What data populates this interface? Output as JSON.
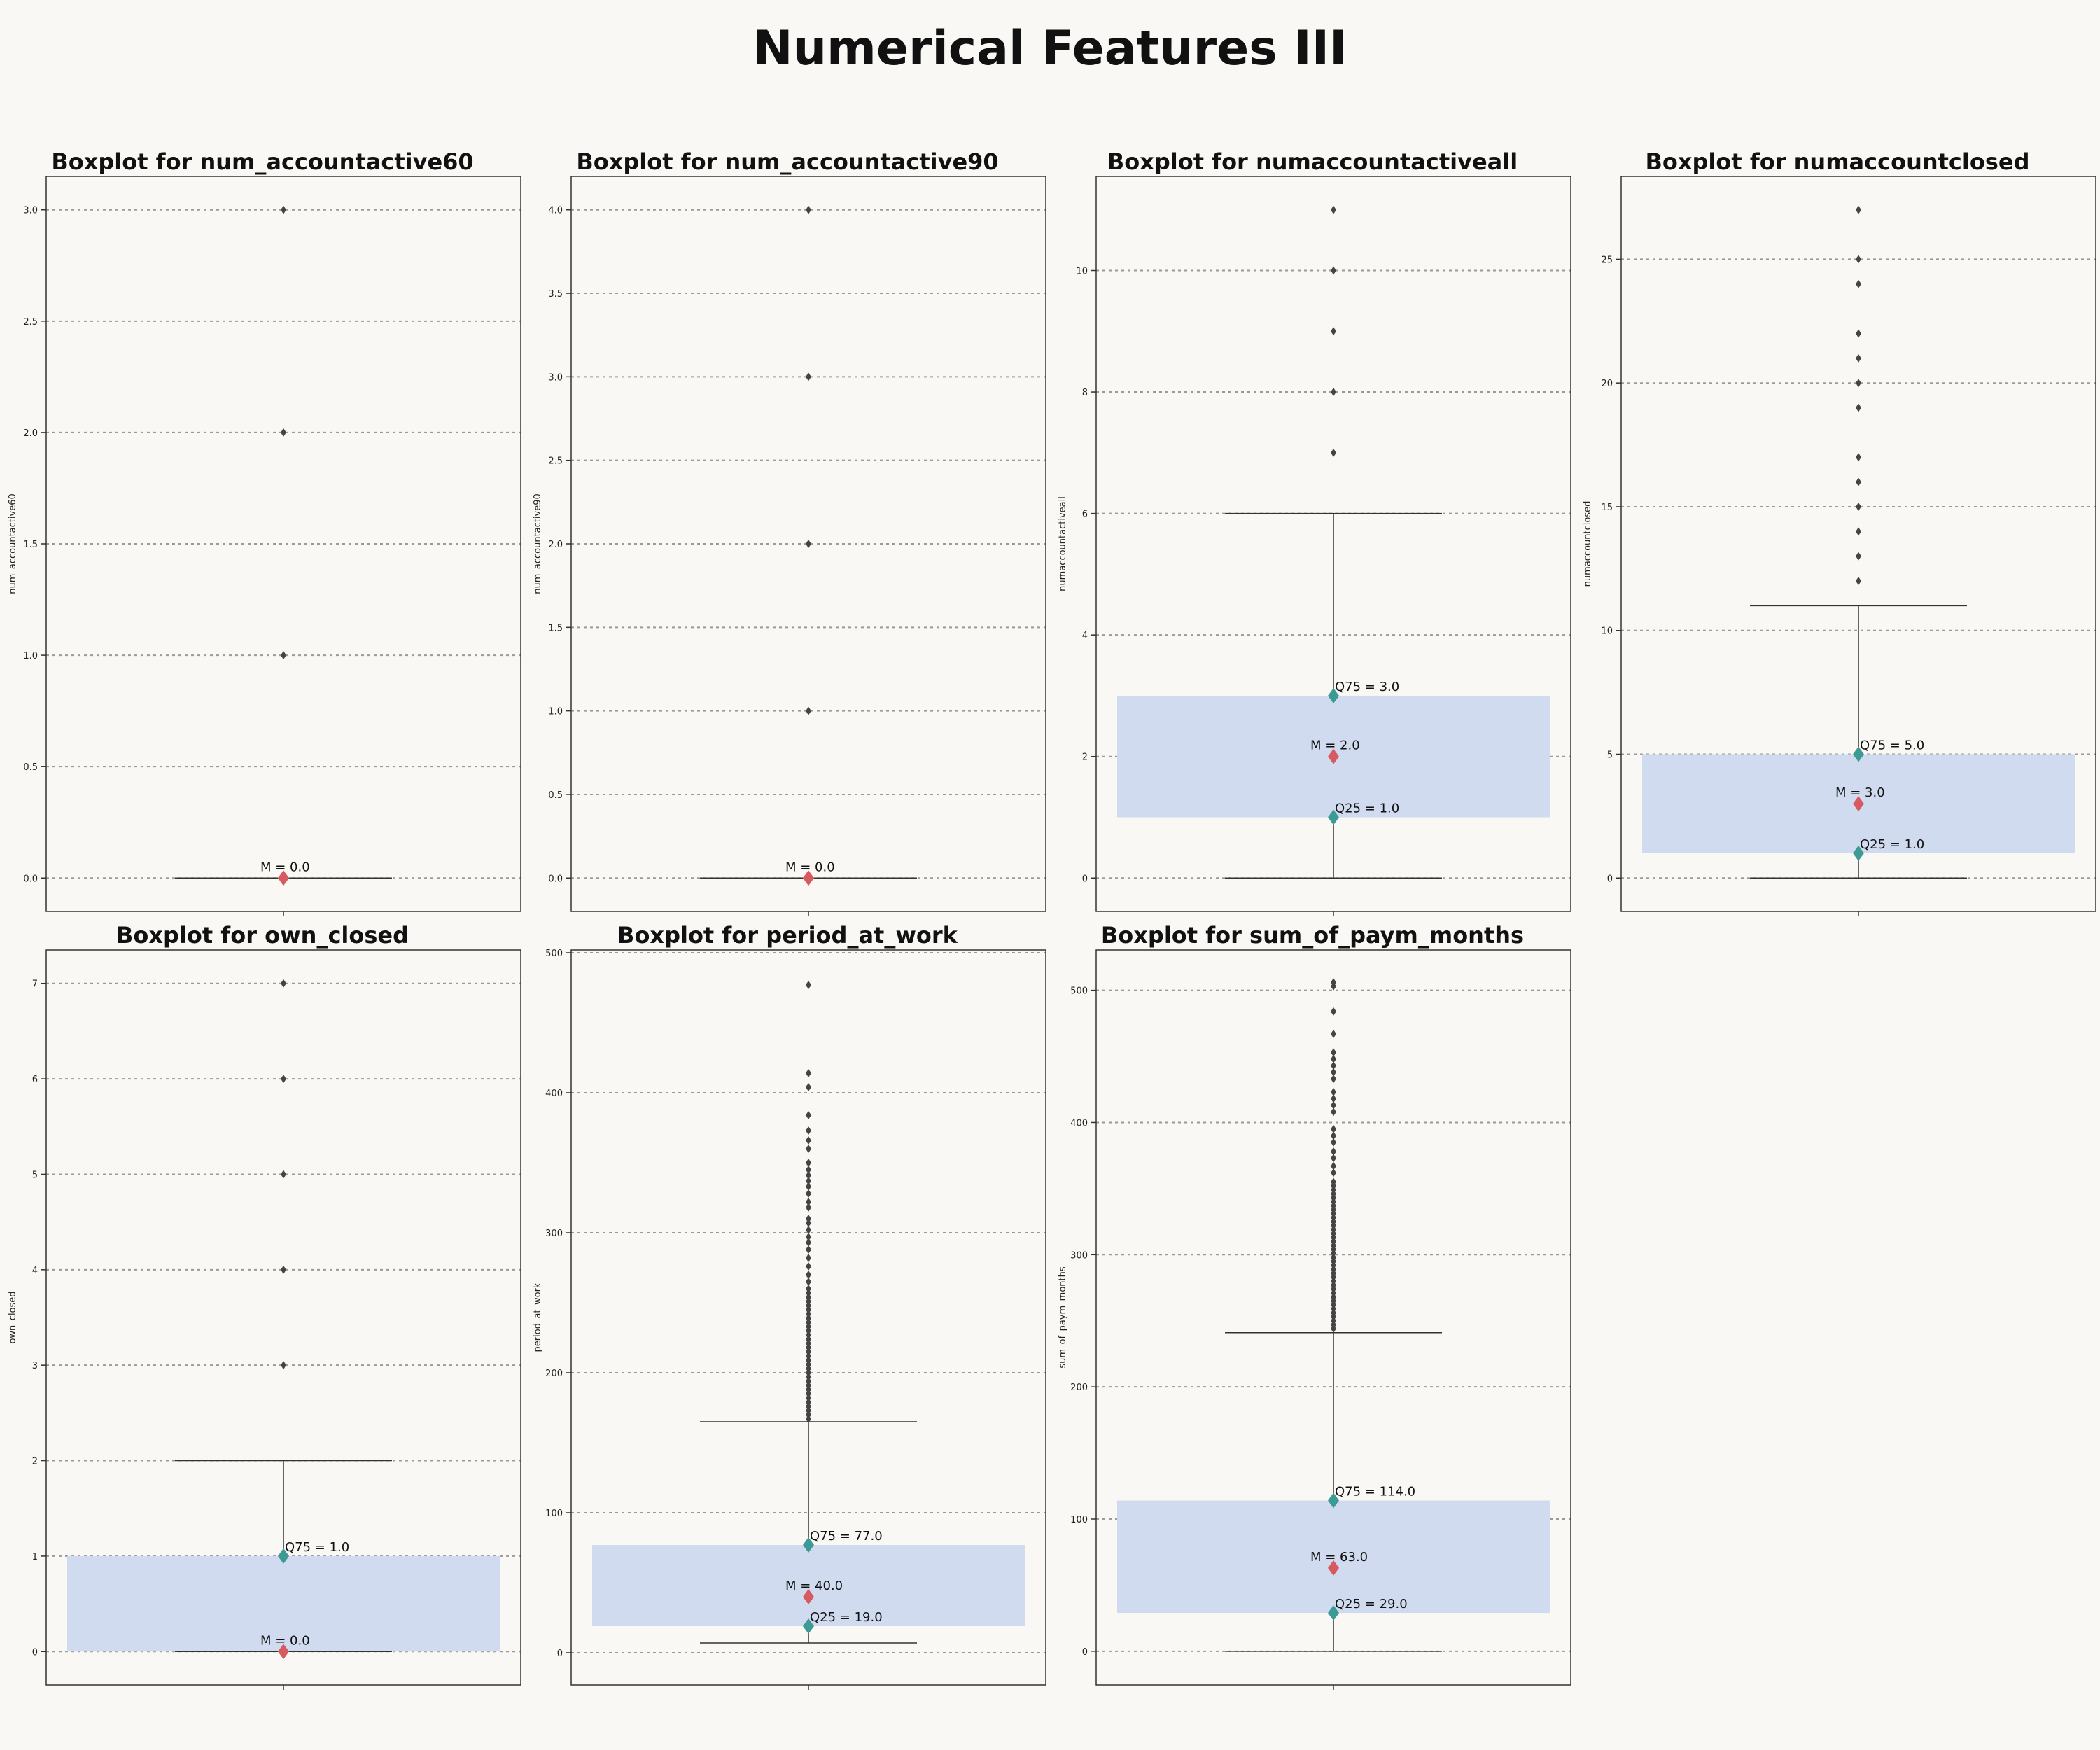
{
  "figure": {
    "title": "Numerical Features III"
  },
  "chart_data": [
    {
      "type": "box",
      "title": "Boxplot for num_accountactive60",
      "ylabel": "num_accountactive60",
      "ylim": [
        -0.15,
        3.15
      ],
      "yticks": [
        0.0,
        0.5,
        1.0,
        1.5,
        2.0,
        2.5,
        3.0
      ],
      "ytick_labels": [
        "0.0",
        "0.5",
        "1.0",
        "1.5",
        "2.0",
        "2.5",
        "3.0"
      ],
      "q1": 0.0,
      "median": 0.0,
      "q3": 0.0,
      "whisker_low": 0.0,
      "whisker_high": 0.0,
      "outliers": [
        1,
        2,
        3
      ],
      "annotations": {
        "median": "M = 0.0",
        "q25": "",
        "q75": ""
      }
    },
    {
      "type": "box",
      "title": "Boxplot for num_accountactive90",
      "ylabel": "num_accountactive90",
      "ylim": [
        -0.2,
        4.2
      ],
      "yticks": [
        0.0,
        0.5,
        1.0,
        1.5,
        2.0,
        2.5,
        3.0,
        3.5,
        4.0
      ],
      "ytick_labels": [
        "0.0",
        "0.5",
        "1.0",
        "1.5",
        "2.0",
        "2.5",
        "3.0",
        "3.5",
        "4.0"
      ],
      "q1": 0.0,
      "median": 0.0,
      "q3": 0.0,
      "whisker_low": 0.0,
      "whisker_high": 0.0,
      "outliers": [
        1,
        2,
        3,
        4
      ],
      "annotations": {
        "median": "M = 0.0",
        "q25": "",
        "q75": ""
      }
    },
    {
      "type": "box",
      "title": "Boxplot for numaccountactiveall",
      "ylabel": "numaccountactiveall",
      "ylim": [
        -0.55,
        11.55
      ],
      "yticks": [
        0,
        2,
        4,
        6,
        8,
        10
      ],
      "ytick_labels": [
        "0",
        "2",
        "4",
        "6",
        "8",
        "10"
      ],
      "q1": 1.0,
      "median": 2.0,
      "q3": 3.0,
      "whisker_low": 0,
      "whisker_high": 6,
      "outliers": [
        7,
        8,
        9,
        10,
        11
      ],
      "annotations": {
        "median": "M = 2.0",
        "q25": "Q25 = 1.0",
        "q75": "Q75 = 3.0"
      }
    },
    {
      "type": "box",
      "title": "Boxplot for numaccountclosed",
      "ylabel": "numaccountclosed",
      "ylim": [
        -1.35,
        28.35
      ],
      "yticks": [
        0,
        5,
        10,
        15,
        20,
        25
      ],
      "ytick_labels": [
        "0",
        "5",
        "10",
        "15",
        "20",
        "25"
      ],
      "q1": 1.0,
      "median": 3.0,
      "q3": 5.0,
      "whisker_low": 0,
      "whisker_high": 11,
      "outliers": [
        12,
        13,
        14,
        15,
        16,
        17,
        19,
        20,
        21,
        22,
        24,
        25,
        27
      ],
      "annotations": {
        "median": "M = 3.0",
        "q25": "Q25 = 1.0",
        "q75": "Q75 = 5.0"
      }
    },
    {
      "type": "box",
      "title": "Boxplot for own_closed",
      "ylabel": "own_closed",
      "ylim": [
        -0.35,
        7.35
      ],
      "yticks": [
        0,
        1,
        2,
        3,
        4,
        5,
        6,
        7
      ],
      "ytick_labels": [
        "0",
        "1",
        "2",
        "3",
        "4",
        "5",
        "6",
        "7"
      ],
      "q1": 0.0,
      "median": 0.0,
      "q3": 1.0,
      "whisker_low": 0,
      "whisker_high": 2,
      "outliers": [
        3,
        4,
        5,
        6,
        7
      ],
      "annotations": {
        "median": "M = 0.0",
        "q25": "",
        "q75": "Q75 = 1.0"
      }
    },
    {
      "type": "box",
      "title": "Boxplot for period_at_work",
      "ylabel": "period_at_work",
      "ylim": [
        -23,
        502
      ],
      "yticks": [
        0,
        100,
        200,
        300,
        400,
        500
      ],
      "ytick_labels": [
        "0",
        "100",
        "200",
        "300",
        "400",
        "500"
      ],
      "q1": 19.0,
      "median": 40.0,
      "q3": 77.0,
      "whisker_low": 7,
      "whisker_high": 165,
      "outliers": [
        167,
        170,
        173,
        176,
        179,
        182,
        185,
        188,
        191,
        194,
        197,
        200,
        203,
        206,
        209,
        212,
        215,
        218,
        221,
        224,
        227,
        230,
        233,
        236,
        239,
        242,
        245,
        248,
        251,
        254,
        257,
        260,
        265,
        270,
        276,
        282,
        288,
        293,
        297,
        302,
        307,
        310,
        318,
        322,
        328,
        333,
        337,
        341,
        345,
        350,
        360,
        366,
        373,
        384,
        404,
        414,
        477
      ],
      "annotations": {
        "median": "M = 40.0",
        "q25": "Q25 = 19.0",
        "q75": "Q75 = 77.0"
      }
    },
    {
      "type": "box",
      "title": "Boxplot for sum_of_paym_months",
      "ylabel": "sum_of_paym_months",
      "ylim": [
        -25.5,
        530.5
      ],
      "yticks": [
        0,
        100,
        200,
        300,
        400,
        500
      ],
      "ytick_labels": [
        "0",
        "100",
        "200",
        "300",
        "400",
        "500"
      ],
      "q1": 29.0,
      "median": 63.0,
      "q3": 114.0,
      "whisker_low": 0,
      "whisker_high": 241,
      "outliers": [
        244,
        247,
        250,
        253,
        256,
        259,
        262,
        265,
        268,
        271,
        274,
        277,
        280,
        283,
        286,
        289,
        292,
        295,
        298,
        301,
        304,
        307,
        310,
        313,
        316,
        319,
        322,
        325,
        328,
        331,
        334,
        337,
        340,
        343,
        346,
        349,
        352,
        355,
        362,
        367,
        373,
        378,
        385,
        390,
        395,
        408,
        413,
        418,
        423,
        433,
        438,
        443,
        448,
        453,
        467,
        484,
        503,
        506
      ],
      "annotations": {
        "median": "M = 63.0",
        "q25": "Q25 = 29.0",
        "q75": "Q75 = 114.0"
      }
    }
  ]
}
